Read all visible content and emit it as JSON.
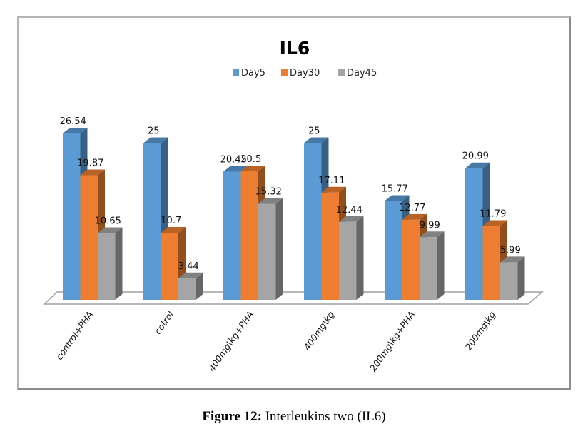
{
  "chart_data": {
    "type": "bar",
    "style": "3d-clustered-column",
    "title": "IL6",
    "xlabel": "",
    "ylabel": "",
    "ylim": [
      0,
      30
    ],
    "grid": false,
    "legend_position": "top",
    "categories": [
      "control+PHA",
      "cotrol",
      "400mg\\kg+PHA",
      "400mg\\kg",
      "200mg\\kg+PHA",
      "200mg\\kg"
    ],
    "series": [
      {
        "name": "Day5",
        "color": "#5b9bd5",
        "values": [
          26.54,
          25,
          20.45,
          25,
          15.77,
          20.99
        ]
      },
      {
        "name": "Day30",
        "color": "#ed7d31",
        "values": [
          19.87,
          10.7,
          20.5,
          17.11,
          12.77,
          11.79
        ]
      },
      {
        "name": "Day45",
        "color": "#a5a5a5",
        "values": [
          10.65,
          3.44,
          15.32,
          12.44,
          9.99,
          5.99
        ]
      }
    ],
    "data_labels": [
      [
        "26.54",
        "25",
        "20.45",
        "25",
        "15.77",
        "20.99"
      ],
      [
        "19.87",
        "10.7",
        "20.5",
        "17.11",
        "12.77",
        "11.79"
      ],
      [
        "10.65",
        "3.44",
        "15.32",
        "12.44",
        "9.99",
        "5.99"
      ]
    ]
  },
  "caption": {
    "label": "Figure 12:",
    "text": " Interleukins two (IL6)"
  }
}
